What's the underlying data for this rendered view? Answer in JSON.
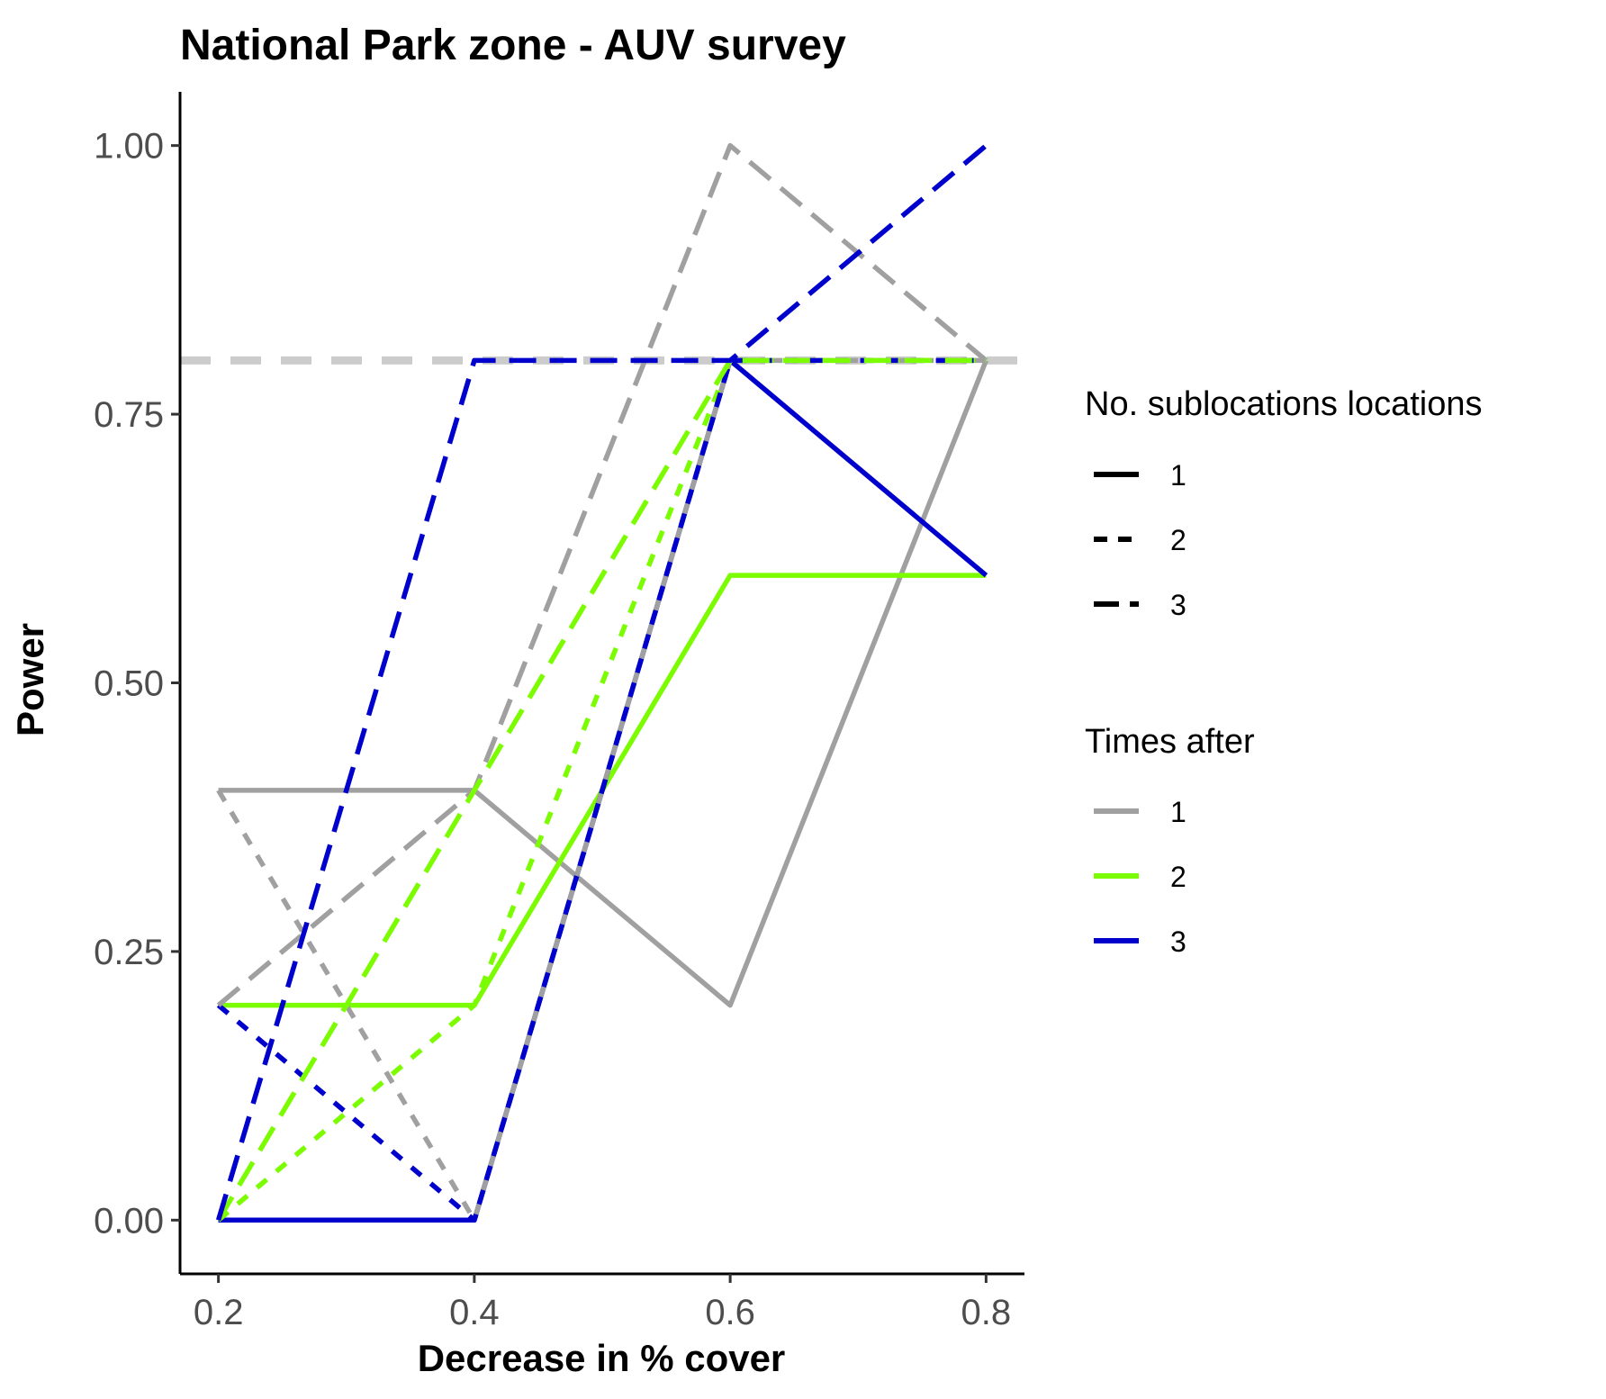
{
  "chart_data": {
    "type": "line",
    "title": "National Park zone - AUV survey",
    "xlabel": "Decrease in % cover",
    "ylabel": "Power",
    "x": [
      0.2,
      0.4,
      0.6,
      0.8
    ],
    "x_tick_labels": [
      "0.2",
      "0.4",
      "0.6",
      "0.8"
    ],
    "y_ticks": [
      0,
      0.25,
      0.5,
      0.75,
      1
    ],
    "y_tick_labels": [
      "0.00",
      "0.25",
      "0.50",
      "0.75",
      "1.00"
    ],
    "xlim": [
      0.17,
      0.83
    ],
    "ylim": [
      -0.05,
      1.05
    ],
    "grid": false,
    "legend_position": "right",
    "reference_line": {
      "y": 0.8,
      "color": "#cccccc",
      "style": "dashed"
    },
    "legends": [
      {
        "title": "No. sublocations locations",
        "type": "linetype",
        "entries": [
          {
            "label": "1",
            "style": "solid"
          },
          {
            "label": "2",
            "style": "dotted"
          },
          {
            "label": "3",
            "style": "dashed"
          }
        ]
      },
      {
        "title": "Times after",
        "type": "color",
        "entries": [
          {
            "label": "1",
            "color": "#a0a0a0"
          },
          {
            "label": "2",
            "color": "#7cfc00"
          },
          {
            "label": "3",
            "color": "#0000cd"
          }
        ]
      }
    ],
    "series": [
      {
        "sublocations": "1",
        "times_after": "1",
        "color": "#a0a0a0",
        "style": "solid",
        "values": [
          0.4,
          0.4,
          0.2,
          0.8
        ]
      },
      {
        "sublocations": "1",
        "times_after": "2",
        "color": "#7cfc00",
        "style": "solid",
        "values": [
          0.2,
          0.2,
          0.6,
          0.6
        ]
      },
      {
        "sublocations": "1",
        "times_after": "3",
        "color": "#0000cd",
        "style": "solid",
        "values": [
          0.0,
          0.0,
          0.8,
          0.6
        ]
      },
      {
        "sublocations": "2",
        "times_after": "1",
        "color": "#a0a0a0",
        "style": "dotted",
        "values": [
          0.4,
          0.0,
          0.8,
          0.8
        ]
      },
      {
        "sublocations": "2",
        "times_after": "2",
        "color": "#7cfc00",
        "style": "dotted",
        "values": [
          0.0,
          0.2,
          0.8,
          0.8
        ]
      },
      {
        "sublocations": "2",
        "times_after": "3",
        "color": "#0000cd",
        "style": "dotted",
        "values": [
          0.2,
          0.0,
          0.8,
          0.8
        ]
      },
      {
        "sublocations": "3",
        "times_after": "1",
        "color": "#a0a0a0",
        "style": "dashed",
        "values": [
          0.2,
          0.4,
          1.0,
          0.8
        ]
      },
      {
        "sublocations": "3",
        "times_after": "2",
        "color": "#7cfc00",
        "style": "dashed",
        "values": [
          0.0,
          0.4,
          0.8,
          0.8
        ]
      },
      {
        "sublocations": "3",
        "times_after": "3",
        "color": "#0000cd",
        "style": "dashed",
        "values": [
          0.0,
          0.8,
          0.8,
          1.0
        ]
      }
    ]
  }
}
